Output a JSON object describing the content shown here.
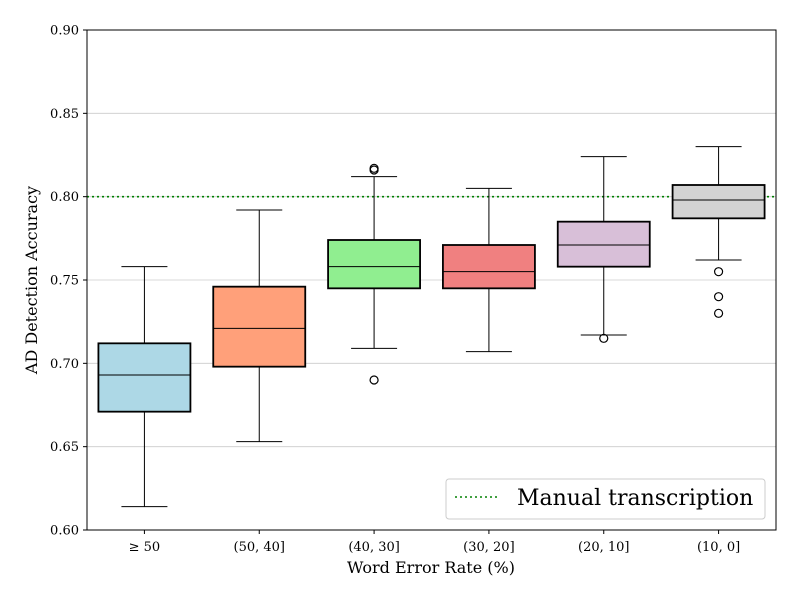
{
  "chart_data": {
    "type": "box",
    "title": "",
    "xlabel": "Word Error Rate (%)",
    "ylabel": "AD Detection Accuracy",
    "ylim": [
      0.6,
      0.9
    ],
    "yticks": [
      "0.60",
      "0.65",
      "0.70",
      "0.75",
      "0.80",
      "0.85",
      "0.90"
    ],
    "grid": "horizontal",
    "categories": [
      "≥ 50",
      "(50, 40]",
      "(40, 30]",
      "(30, 20]",
      "(20, 10]",
      "(10, 0]"
    ],
    "boxes": [
      {
        "category": "≥ 50",
        "whisker_low": 0.614,
        "q1": 0.671,
        "median": 0.693,
        "q3": 0.712,
        "whisker_high": 0.758,
        "outliers": [],
        "color": "#add8e6"
      },
      {
        "category": "(50, 40]",
        "whisker_low": 0.653,
        "q1": 0.698,
        "median": 0.721,
        "q3": 0.746,
        "whisker_high": 0.792,
        "outliers": [],
        "color": "#ffa07a"
      },
      {
        "category": "(40, 30]",
        "whisker_low": 0.709,
        "q1": 0.745,
        "median": 0.758,
        "q3": 0.774,
        "whisker_high": 0.812,
        "outliers": [
          0.69,
          0.816,
          0.817
        ],
        "color": "#90ee90"
      },
      {
        "category": "(30, 20]",
        "whisker_low": 0.707,
        "q1": 0.745,
        "median": 0.755,
        "q3": 0.771,
        "whisker_high": 0.805,
        "outliers": [],
        "color": "#f08080"
      },
      {
        "category": "(20, 10]",
        "whisker_low": 0.717,
        "q1": 0.758,
        "median": 0.771,
        "q3": 0.785,
        "whisker_high": 0.824,
        "outliers": [
          0.715
        ],
        "color": "#d8bfd8"
      },
      {
        "category": "(10, 0]",
        "whisker_low": 0.762,
        "q1": 0.787,
        "median": 0.798,
        "q3": 0.807,
        "whisker_high": 0.83,
        "outliers": [
          0.73,
          0.74,
          0.755
        ],
        "color": "#d3d3d3"
      }
    ],
    "reference_line": {
      "label": "Manual transcription",
      "value": 0.8,
      "color": "#008000",
      "style": "dotted"
    },
    "legend": {
      "placement": "lower-right",
      "entries": [
        "Manual transcription"
      ]
    }
  }
}
